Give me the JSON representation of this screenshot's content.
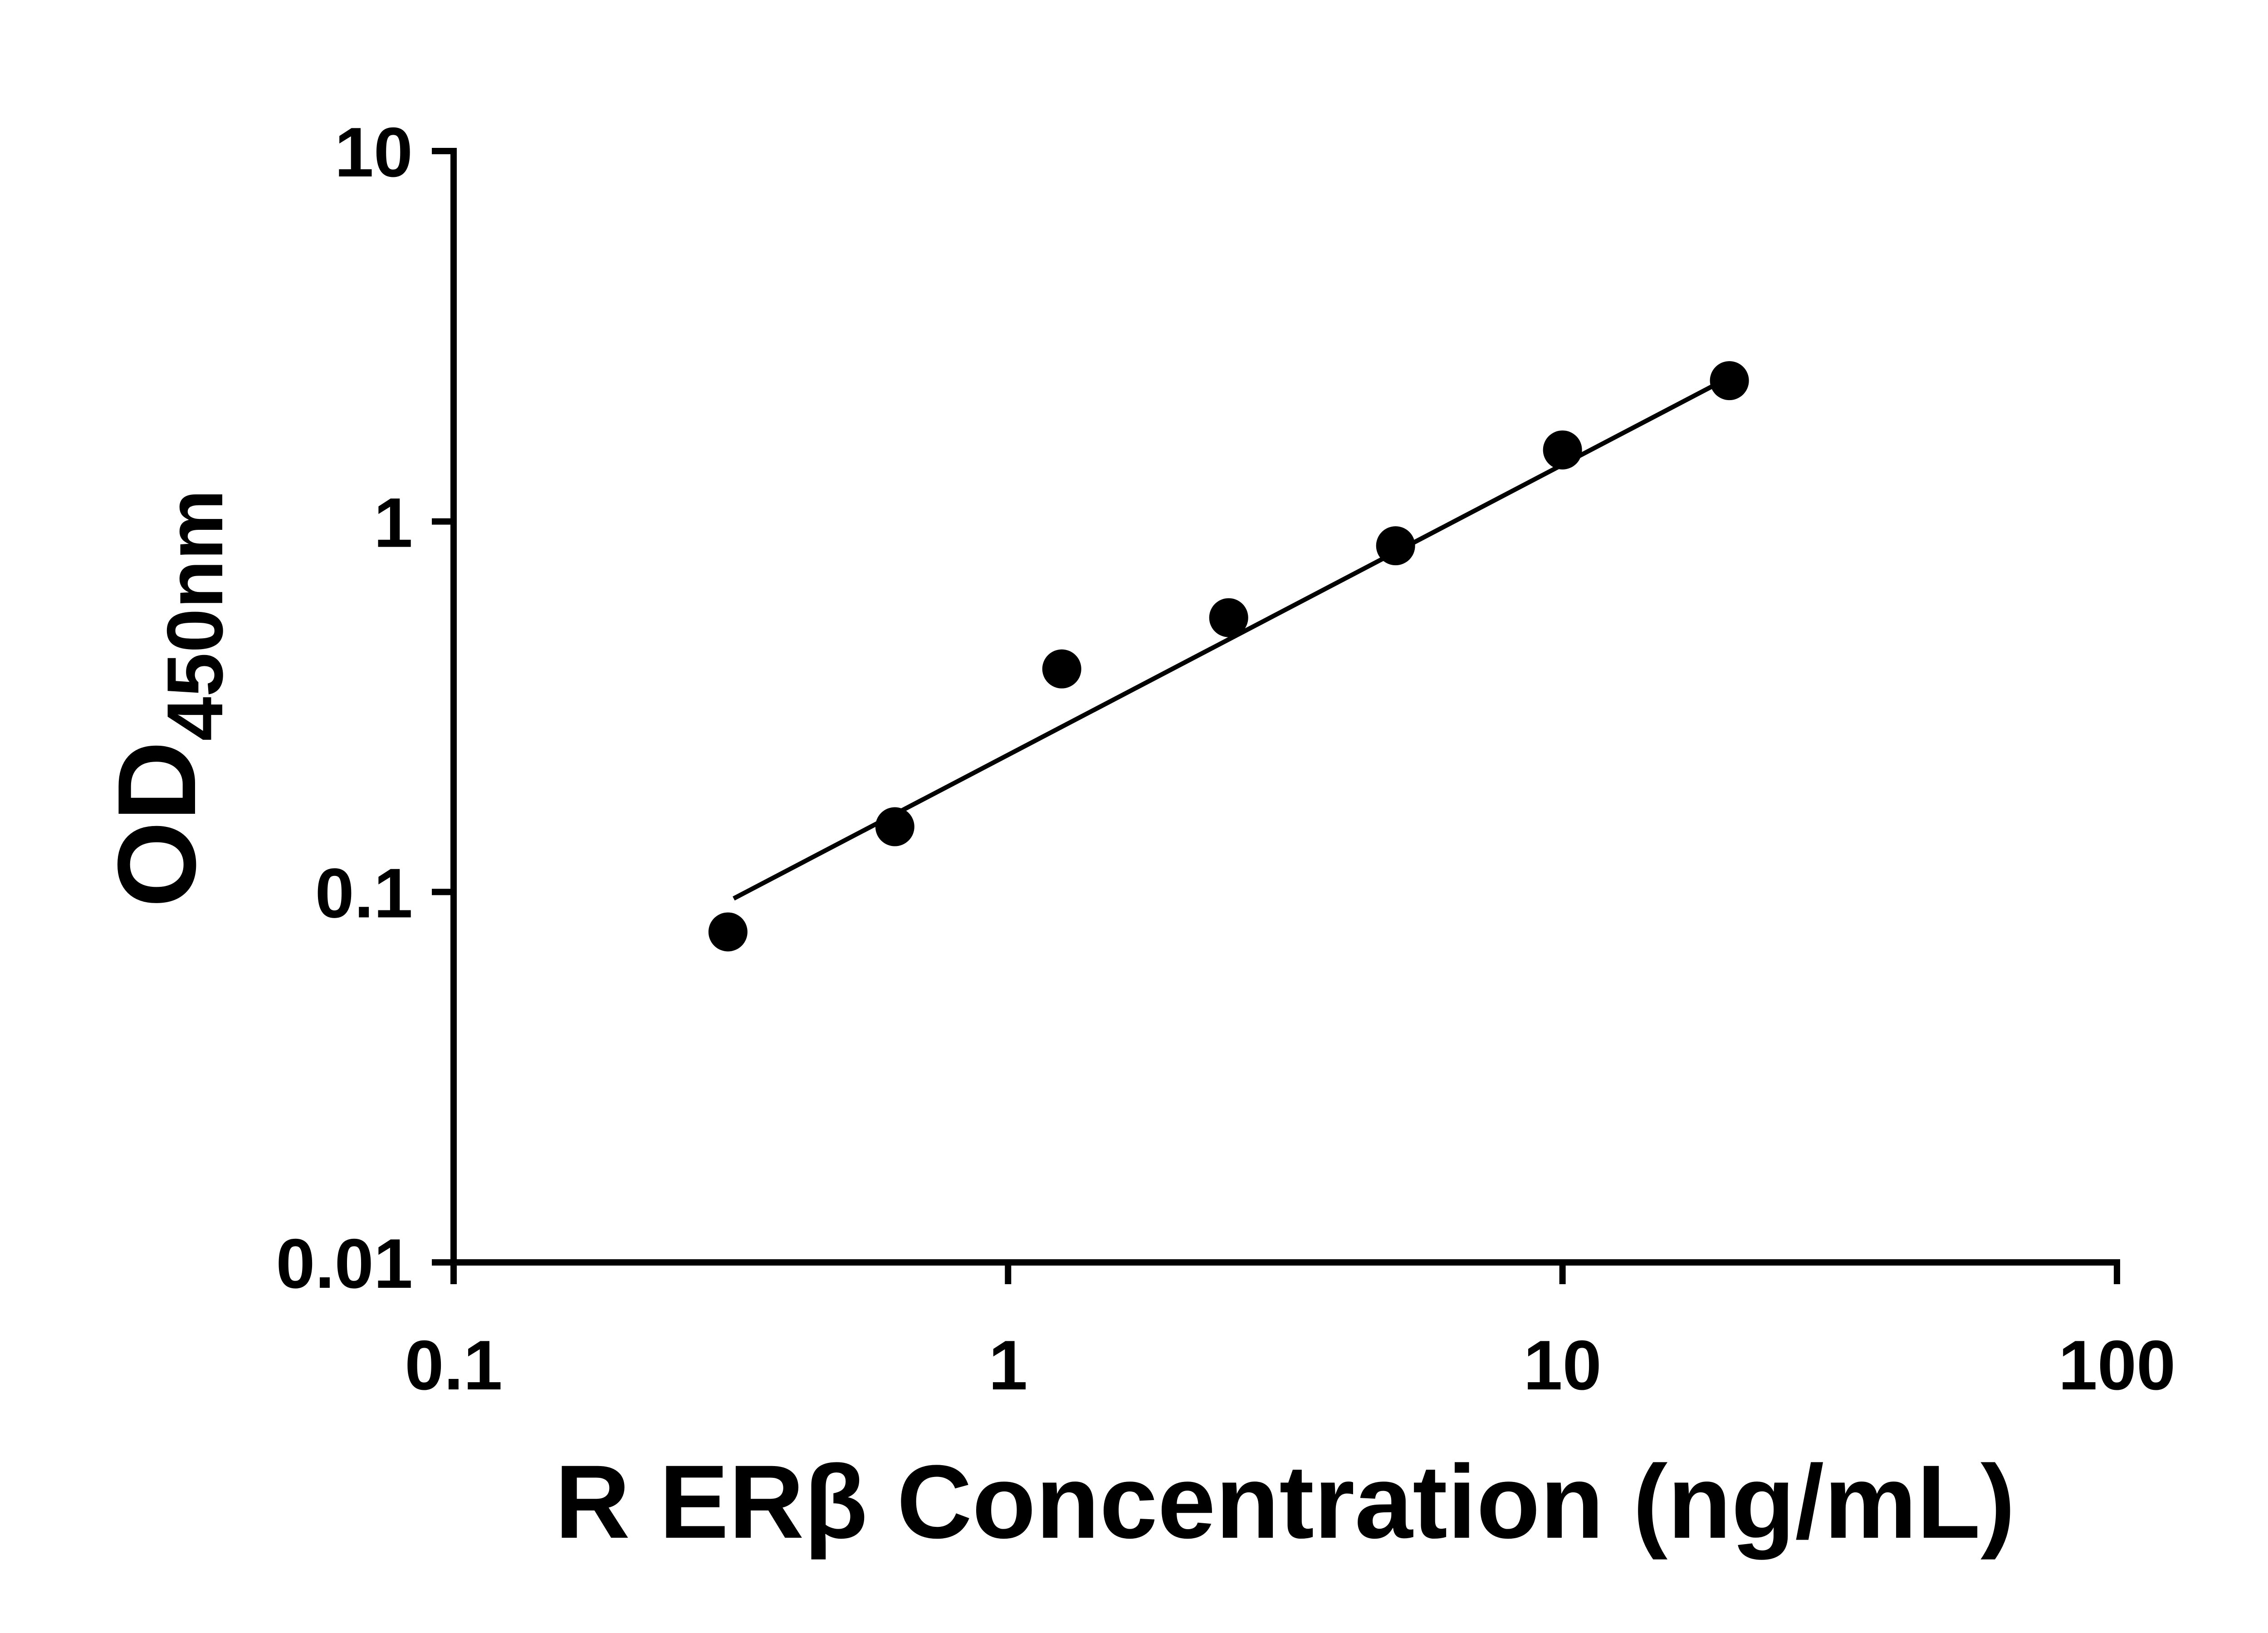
{
  "chart_data": {
    "type": "scatter",
    "title": "",
    "xlabel": "R ERβ Concentration (ng/mL)",
    "ylabel": "OD450nm",
    "ylabel_main": "OD",
    "ylabel_sub": "450nm",
    "x_scale": "log",
    "y_scale": "log",
    "xlim": [
      0.1,
      100
    ],
    "ylim": [
      0.01,
      10
    ],
    "grid": false,
    "legend": false,
    "x_ticks": [
      {
        "value": 0.1,
        "label": "0.1"
      },
      {
        "value": 1,
        "label": "1"
      },
      {
        "value": 10,
        "label": "10"
      },
      {
        "value": 100,
        "label": "100"
      }
    ],
    "y_ticks": [
      {
        "value": 0.01,
        "label": "0.01"
      },
      {
        "value": 0.1,
        "label": "0.1"
      },
      {
        "value": 1,
        "label": "1"
      },
      {
        "value": 10,
        "label": "10"
      }
    ],
    "points": [
      {
        "x": 0.3125,
        "y": 0.078
      },
      {
        "x": 0.625,
        "y": 0.15
      },
      {
        "x": 1.25,
        "y": 0.4
      },
      {
        "x": 2.5,
        "y": 0.55
      },
      {
        "x": 5,
        "y": 0.86
      },
      {
        "x": 10,
        "y": 1.56
      },
      {
        "x": 20,
        "y": 2.4
      }
    ],
    "trend_line": [
      {
        "x": 0.32,
        "y": 0.096
      },
      {
        "x": 20,
        "y": 2.45
      }
    ],
    "marker_color": "#000000",
    "line_color": "#000000",
    "axis_color": "#000000",
    "background_color": "#ffffff"
  }
}
